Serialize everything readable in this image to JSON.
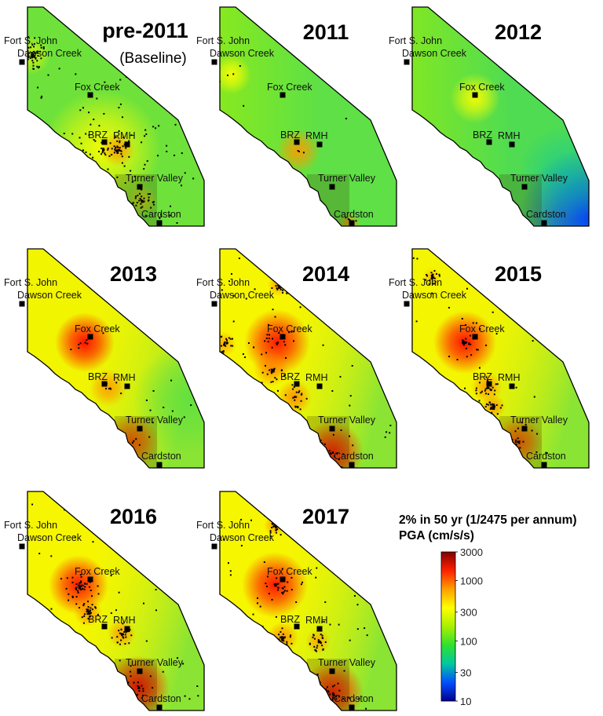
{
  "colorbar": {
    "title_line1": "2% in 50 yr (1/2475 per annum)",
    "title_line2": "PGA (cm/s/s)",
    "scale": "log",
    "range": [
      10,
      3000
    ],
    "ticks": [
      {
        "value": 3000,
        "label": "3000"
      },
      {
        "value": 1000,
        "label": "1000"
      },
      {
        "value": 300,
        "label": "300"
      },
      {
        "value": 100,
        "label": "100"
      },
      {
        "value": 30,
        "label": "30"
      },
      {
        "value": 10,
        "label": "10"
      }
    ],
    "colors": [
      "#00008f",
      "#0050ff",
      "#00c8a0",
      "#30e030",
      "#a8f000",
      "#ffff00",
      "#ffa000",
      "#ff2000",
      "#800000"
    ]
  },
  "cities": [
    {
      "name": "Fort S. John"
    },
    {
      "name": "Dawson Creek"
    },
    {
      "name": "Fox Creek"
    },
    {
      "name": "BRZ"
    },
    {
      "name": "RMH"
    },
    {
      "name": "Turner Valley"
    },
    {
      "name": "Cardston"
    }
  ],
  "panels": [
    {
      "title": "pre-2011",
      "subtitle": "(Baseline)",
      "background": "#6ee23a"
    },
    {
      "title": "2011",
      "subtitle": "",
      "background": "#5ee046"
    },
    {
      "title": "2012",
      "subtitle": "",
      "background": "#4fdc52"
    },
    {
      "title": "2013",
      "subtitle": "",
      "background": "#f2f500"
    },
    {
      "title": "2014",
      "subtitle": "",
      "background": "#f6f600"
    },
    {
      "title": "2015",
      "subtitle": "",
      "background": "#f4f500"
    },
    {
      "title": "2016",
      "subtitle": "",
      "background": "#f6f600"
    },
    {
      "title": "2017",
      "subtitle": "",
      "background": "#f6f600"
    }
  ]
}
